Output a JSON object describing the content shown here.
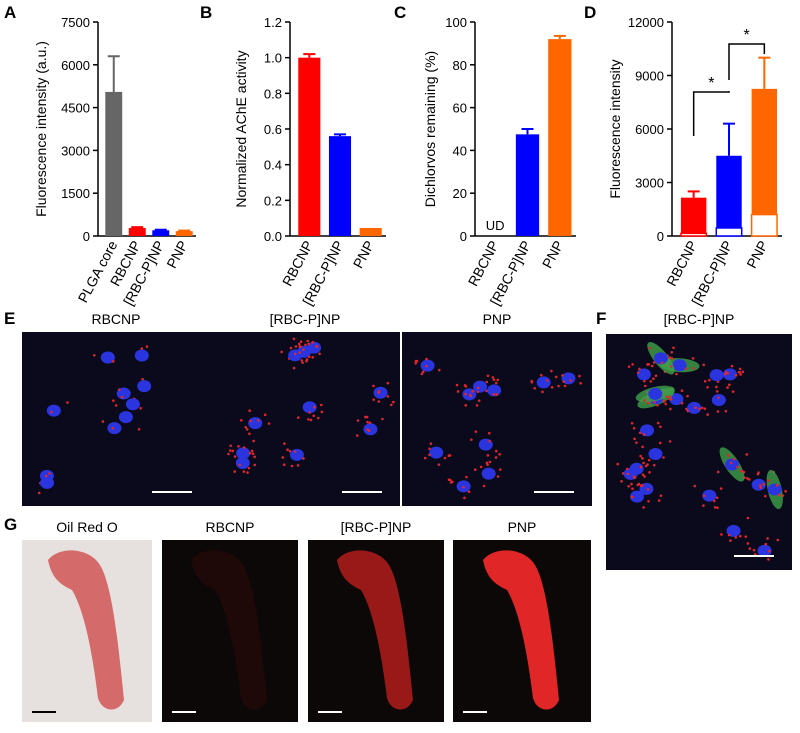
{
  "chart_data": [
    {
      "type": "bar",
      "label": "A",
      "ylabel": "Fluorescence intensity (a.u.)",
      "categories": [
        "PLGA core",
        "RBCNP",
        "[RBC-P]NP",
        "PNP"
      ],
      "values": [
        5050,
        280,
        200,
        170
      ],
      "errors": [
        1250,
        30,
        20,
        20
      ],
      "colors": [
        "#666666",
        "#ff0000",
        "#0000ff",
        "#ff6600"
      ],
      "ylim": [
        0,
        7500
      ],
      "yticks": [
        0,
        1500,
        3000,
        4500,
        6000,
        7500
      ]
    },
    {
      "type": "bar",
      "label": "B",
      "ylabel": "Normalized AChE activity",
      "categories": [
        "RBCNP",
        "[RBC-P]NP",
        "PNP"
      ],
      "values": [
        1.0,
        0.56,
        0.045
      ],
      "errors": [
        0.02,
        0.01,
        0
      ],
      "colors": [
        "#ff0000",
        "#0000ff",
        "#ff6600"
      ],
      "ylim": [
        0,
        1.2
      ],
      "yticks": [
        {
          "value": 0,
          "label": "0.0"
        },
        0.2,
        0.4,
        0.6,
        0.8,
        {
          "value": 1,
          "label": "1.0"
        },
        1.2
      ]
    },
    {
      "type": "bar",
      "label": "C",
      "ylabel": "Dichlorvos remaining (%)",
      "categories": [
        "RBCNP",
        "[RBC-P]NP",
        "PNP"
      ],
      "values": [
        null,
        47.5,
        92
      ],
      "errors": [
        null,
        2.5,
        1.5
      ],
      "colors": [
        "#ff0000",
        "#0000ff",
        "#ff6600"
      ],
      "annotation": "UD",
      "ylim": [
        0,
        100
      ],
      "yticks": [
        0,
        20,
        40,
        60,
        80,
        100
      ]
    },
    {
      "type": "bar",
      "label": "D",
      "ylabel": "Fluorescence intensity",
      "categories": [
        "RBCNP",
        "[RBC-P]NP",
        "PNP"
      ],
      "series": [
        {
          "colors": [
            "#ff0000",
            "#0000ff",
            "#ff6600"
          ],
          "values": [
            2150,
            4500,
            8250
          ],
          "errors": [
            350,
            1800,
            1750
          ]
        },
        {
          "color": "#ffffff",
          "values": [
            150,
            450,
            1200
          ],
          "errors": [
            0,
            0,
            150
          ]
        }
      ],
      "annotations": [
        "*",
        "*"
      ],
      "ylim": [
        0,
        12000
      ],
      "yticks": [
        0,
        3000,
        6000,
        9000,
        12000
      ]
    }
  ],
  "images": {
    "E": {
      "label": "E",
      "titles": [
        "RBCNP",
        "[RBC-P]NP",
        "PNP"
      ]
    },
    "F": {
      "label": "F",
      "title": "[RBC-P]NP"
    },
    "G": {
      "label": "G",
      "titles": [
        "Oil Red O",
        "RBCNP",
        "[RBC-P]NP",
        "PNP"
      ]
    }
  }
}
